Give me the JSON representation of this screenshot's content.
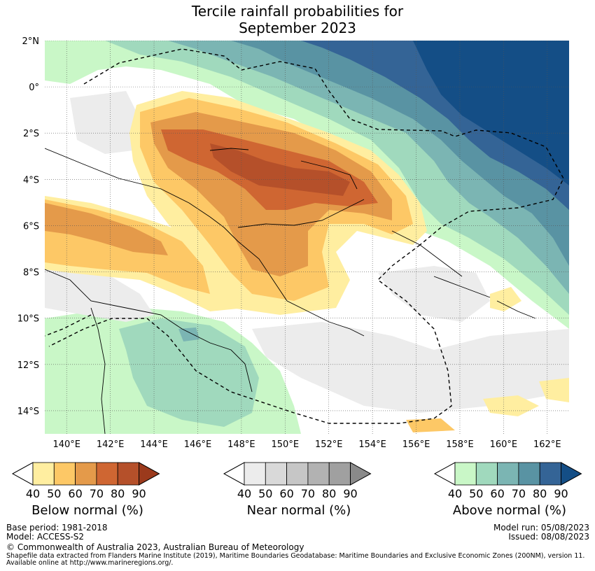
{
  "title": {
    "line1": "Tercile rainfall probabilities for",
    "line2": "September 2023"
  },
  "map": {
    "lat_labels": [
      "2°N",
      "0°",
      "2°S",
      "4°S",
      "6°S",
      "8°S",
      "10°S",
      "12°S",
      "14°S"
    ],
    "lon_labels": [
      "140°E",
      "142°E",
      "144°E",
      "146°E",
      "148°E",
      "150°E",
      "152°E",
      "154°E",
      "156°E",
      "158°E",
      "160°E",
      "162°E"
    ],
    "lat_range": [
      2.0,
      -15.0
    ],
    "lon_range": [
      139.0,
      163.0
    ]
  },
  "legend": [
    {
      "label": "Below normal (%)",
      "ticks": [
        "40",
        "50",
        "60",
        "70",
        "80",
        "90"
      ],
      "colors": [
        "#ffeea0",
        "#fdc866",
        "#e49a4a",
        "#cf6632",
        "#b5502a",
        "#9b3a1c"
      ]
    },
    {
      "label": "Near normal (%)",
      "ticks": [
        "40",
        "50",
        "60",
        "70",
        "80",
        "90"
      ],
      "colors": [
        "#ececec",
        "#d9d9d9",
        "#c6c6c6",
        "#b2b2b2",
        "#a0a0a0",
        "#8a8a8a"
      ]
    },
    {
      "label": "Above normal (%)",
      "ticks": [
        "40",
        "50",
        "60",
        "70",
        "80",
        "90"
      ],
      "colors": [
        "#c9f7c7",
        "#a0d9bd",
        "#7bb5b3",
        "#5993a3",
        "#346496",
        "#144e86"
      ]
    }
  ],
  "footer": {
    "base_period": "Base period: 1981-2018",
    "model": "Model: ACCESS-S2",
    "model_run": "Model run: 05/08/2023",
    "issued": "Issued: 08/08/2023",
    "copyright": "© Commonwealth of Australia 2023, Australian Bureau of Meteorology",
    "shapefile_line1": "Shapefile data extracted from Flanders Marine Institute (2019), Maritime Boundaries Geodatabase: Maritime Boundaries and Exclusive Economic Zones (200NM), version 11.",
    "shapefile_line2": "Available online at http://www.marineregions.org/."
  }
}
